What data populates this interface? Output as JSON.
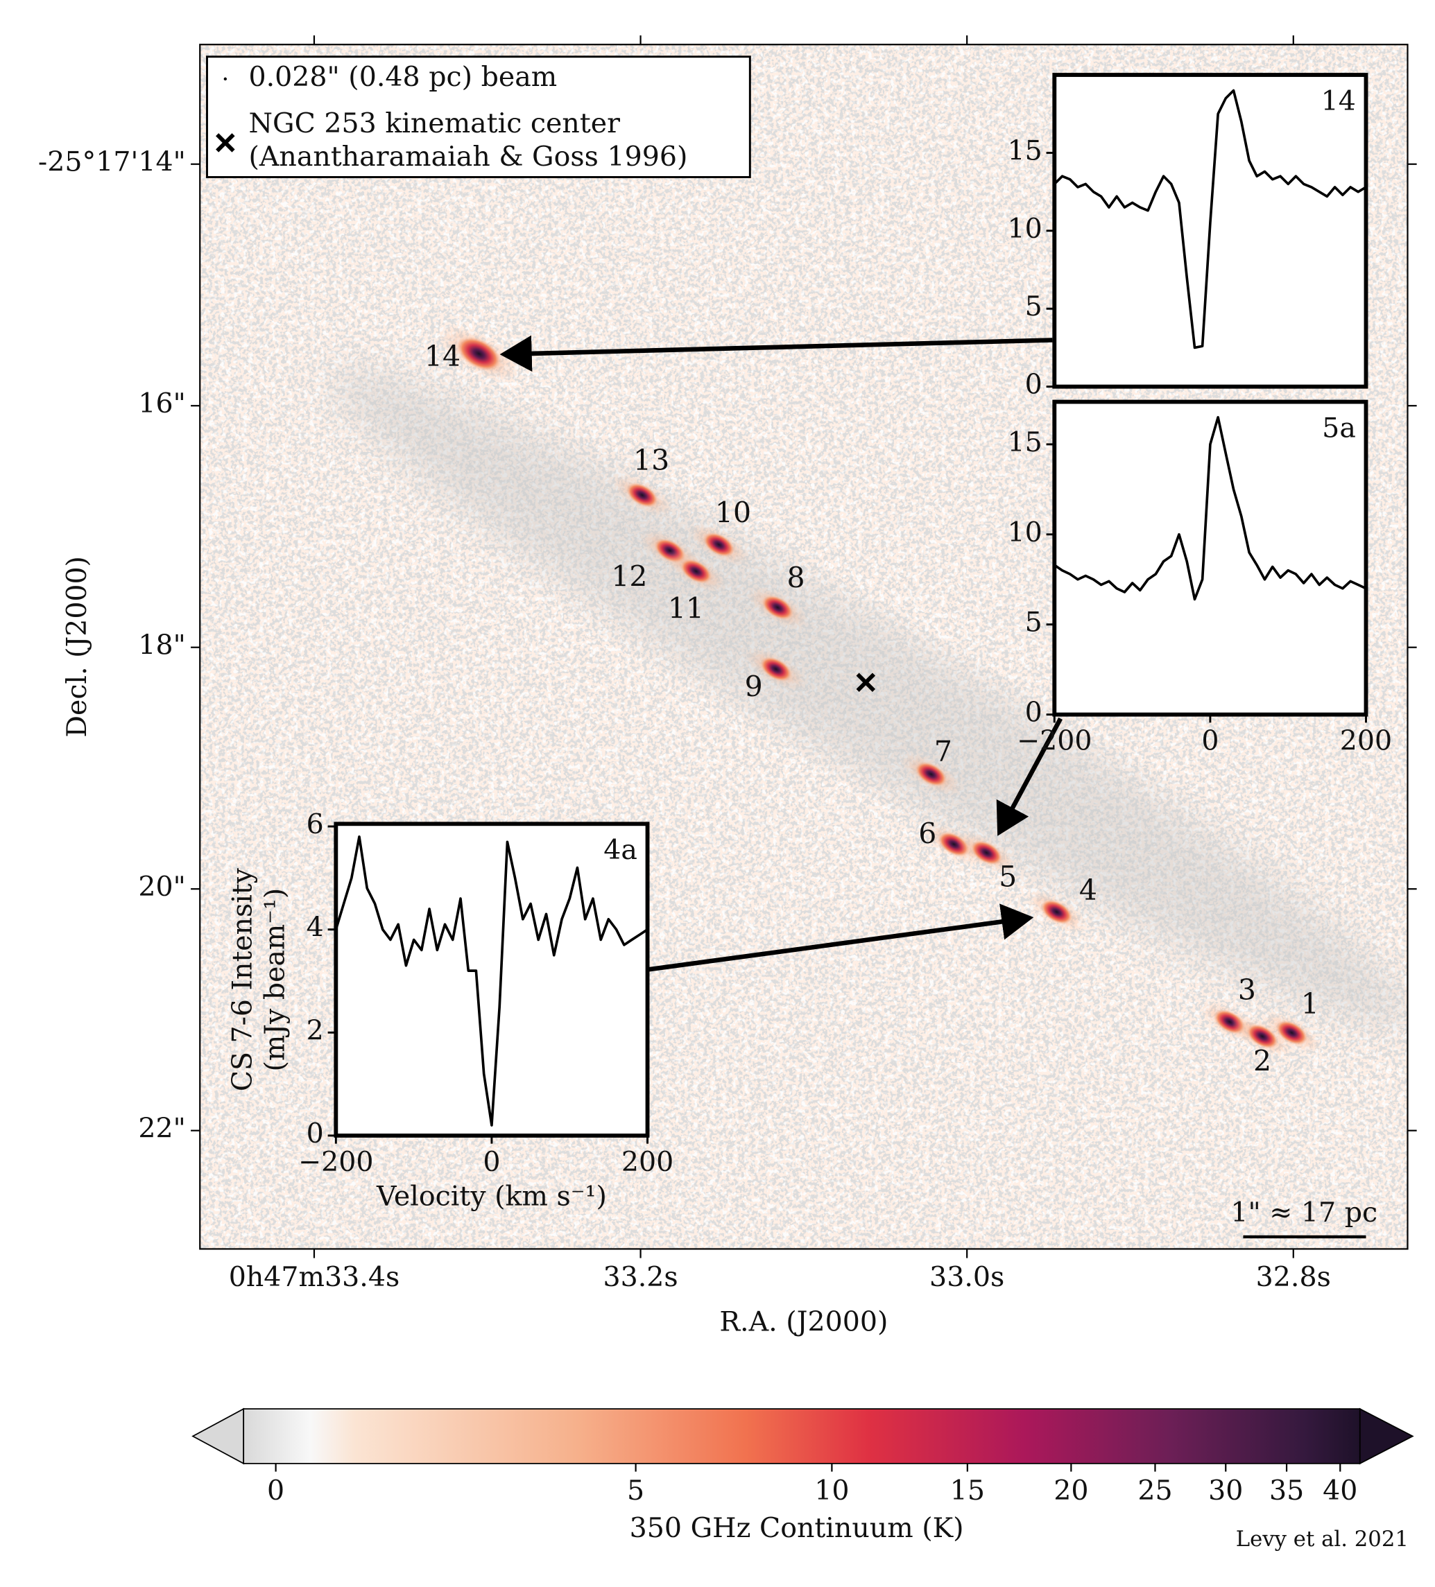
{
  "chart_data": [
    {
      "type": "image",
      "xlabel": "R.A. (J2000)",
      "ylabel": "Decl. (J2000)",
      "xlim": [
        33.47,
        32.73
      ],
      "xticks": [
        {
          "value": 33.4,
          "label": "0h47m33.4s"
        },
        {
          "value": 33.2,
          "label": "33.2s"
        },
        {
          "value": 33.0,
          "label": "33.0s"
        },
        {
          "value": 32.8,
          "label": "32.8s"
        }
      ],
      "ylim": [
        13.01,
        22.98
      ],
      "yticks": [
        {
          "value": 14,
          "label": "-25°17'14\""
        },
        {
          "value": 16,
          "label": "16\""
        },
        {
          "value": 18,
          "label": "18\""
        },
        {
          "value": 20,
          "label": "20\""
        },
        {
          "value": 22,
          "label": "22\""
        }
      ],
      "sources": [
        {
          "name": "14",
          "ra": 33.299,
          "dec": 15.57
        },
        {
          "name": "13",
          "ra": 33.199,
          "dec": 16.74
        },
        {
          "name": "10",
          "ra": 33.152,
          "dec": 17.15
        },
        {
          "name": "12",
          "ra": 33.182,
          "dec": 17.2
        },
        {
          "name": "11",
          "ra": 33.166,
          "dec": 17.37
        },
        {
          "name": "8",
          "ra": 33.116,
          "dec": 17.67
        },
        {
          "name": "9",
          "ra": 33.117,
          "dec": 18.18
        },
        {
          "name": "7",
          "ra": 33.022,
          "dec": 19.05
        },
        {
          "name": "6",
          "ra": 33.008,
          "dec": 19.63
        },
        {
          "name": "5",
          "ra": 32.988,
          "dec": 19.7
        },
        {
          "name": "4",
          "ra": 32.945,
          "dec": 20.19
        },
        {
          "name": "3",
          "ra": 32.839,
          "dec": 21.1
        },
        {
          "name": "2",
          "ra": 32.819,
          "dec": 21.22
        },
        {
          "name": "1",
          "ra": 32.801,
          "dec": 21.19
        }
      ],
      "center": {
        "ra": 33.062,
        "dec": 18.29
      },
      "legend": [
        "0.028\" (0.48 pc) beam",
        "NGC 253 kinematic center",
        "(Anantharamaiah & Goss 1996)"
      ],
      "scale_bar": "1\" ≈ 17 pc"
    },
    {
      "type": "line",
      "label": "14",
      "x": [
        -200,
        -190,
        -180,
        -170,
        -160,
        -150,
        -140,
        -130,
        -120,
        -110,
        -100,
        -90,
        -80,
        -70,
        -60,
        -50,
        -40,
        -30,
        -20,
        -10,
        0,
        10,
        20,
        30,
        40,
        50,
        60,
        70,
        80,
        90,
        100,
        110,
        120,
        130,
        140,
        150,
        160,
        170,
        180,
        190,
        200
      ],
      "values": [
        13,
        13.5,
        13.3,
        12.8,
        13,
        12.5,
        12.2,
        11.5,
        12.2,
        11.5,
        11.8,
        11.5,
        11.3,
        12.5,
        13.5,
        13,
        11.8,
        7,
        2.5,
        2.6,
        10.5,
        17.5,
        18.5,
        19,
        17,
        14.5,
        13.5,
        13.8,
        13.3,
        13.5,
        13,
        13.5,
        13,
        12.8,
        12.5,
        12.2,
        12.8,
        12.3,
        12.8,
        12.5,
        12.8
      ],
      "xlim": [
        -200,
        200
      ],
      "ylim": [
        0,
        20
      ],
      "yticks": [
        0,
        5,
        10,
        15
      ]
    },
    {
      "type": "line",
      "label": "5a",
      "x": [
        -200,
        -190,
        -180,
        -170,
        -160,
        -150,
        -140,
        -130,
        -120,
        -110,
        -100,
        -90,
        -80,
        -70,
        -60,
        -50,
        -40,
        -30,
        -20,
        -10,
        0,
        10,
        20,
        30,
        40,
        50,
        60,
        70,
        80,
        90,
        100,
        110,
        120,
        130,
        140,
        150,
        160,
        170,
        180,
        190,
        200
      ],
      "values": [
        8.3,
        8,
        7.8,
        7.5,
        7.7,
        7.5,
        7.2,
        7.4,
        7,
        6.8,
        7.3,
        6.9,
        7.5,
        7.8,
        8.5,
        8.8,
        10,
        8.5,
        6.4,
        7.5,
        15,
        16.5,
        14.5,
        12.5,
        11,
        9,
        8.3,
        7.5,
        8.2,
        7.6,
        8,
        7.8,
        7.3,
        7.8,
        7.2,
        7.6,
        7.2,
        7,
        7.4,
        7.2,
        7
      ],
      "xlim": [
        -200,
        200
      ],
      "ylim": [
        0,
        17.36
      ],
      "yticks": [
        0,
        5,
        10,
        15
      ],
      "xticks": [
        {
          "value": -200,
          "label": "−200"
        },
        0,
        200
      ]
    },
    {
      "type": "line",
      "label": "4a",
      "x": [
        -200,
        -190,
        -180,
        -170,
        -160,
        -150,
        -140,
        -130,
        -120,
        -110,
        -100,
        -90,
        -80,
        -70,
        -60,
        -50,
        -40,
        -30,
        -20,
        -10,
        0,
        10,
        20,
        30,
        40,
        50,
        60,
        70,
        80,
        90,
        100,
        110,
        120,
        130,
        140,
        150,
        160,
        170,
        180,
        190,
        200
      ],
      "values": [
        4,
        4.5,
        5,
        5.8,
        4.8,
        4.5,
        4,
        3.8,
        4.1,
        3.3,
        3.8,
        3.6,
        4.4,
        3.6,
        4.1,
        3.8,
        4.6,
        3.2,
        3.2,
        1.2,
        0.2,
        2.5,
        5.7,
        5,
        4.2,
        4.5,
        3.8,
        4.3,
        3.5,
        4.2,
        4.6,
        5.2,
        4.2,
        4.6,
        3.8,
        4.2,
        4,
        3.7,
        3.8,
        3.9,
        4
      ],
      "xlim": [
        -200,
        200
      ],
      "ylim": [
        0,
        6.05
      ],
      "yticks": [
        0,
        2,
        4,
        6
      ],
      "xticks": [
        {
          "value": -200,
          "label": "−200"
        },
        0,
        200
      ],
      "xlabel": "Velocity (km s⁻¹)",
      "ylabel": [
        "CS 7-6  Intensity",
        "(mJy beam⁻¹)"
      ]
    },
    {
      "type": "colorbar",
      "label": "350 GHz Continuum (K)",
      "clim": [
        -0.28,
        42
      ],
      "norm": {
        "type": "log",
        "offset": 4
      },
      "ticks": [
        0,
        5,
        10,
        15,
        20,
        25,
        30,
        35,
        40
      ],
      "credit": "Levy et al. 2021"
    }
  ]
}
